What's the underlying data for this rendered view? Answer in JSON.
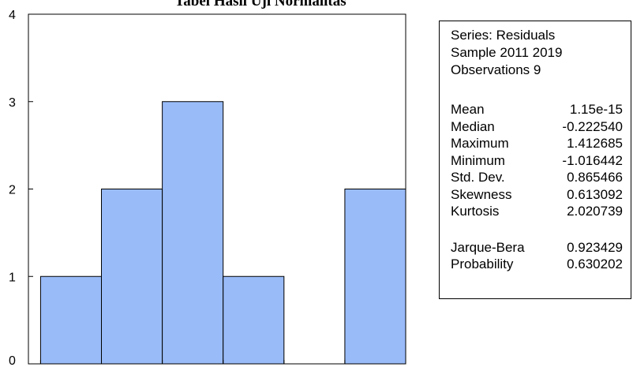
{
  "title": "Tabel Hasil Uji Normalitas",
  "chart_data": {
    "type": "bar",
    "subtype": "histogram",
    "bins": [
      {
        "from": -1.5,
        "to": -1.0,
        "count": 1
      },
      {
        "from": -1.0,
        "to": -0.5,
        "count": 2
      },
      {
        "from": -0.5,
        "to": 0.0,
        "count": 3
      },
      {
        "from": 0.0,
        "to": 0.5,
        "count": 1
      },
      {
        "from": 0.5,
        "to": 1.0,
        "count": 0
      },
      {
        "from": 1.0,
        "to": 1.5,
        "count": 2
      }
    ],
    "xlim": [
      -1.6,
      1.5
    ],
    "ylim": [
      0,
      4
    ],
    "xticks": [
      "-1.5",
      "-1.0",
      "-0.5",
      "0.0",
      "0.5",
      "1.0",
      "1.5"
    ],
    "yticks": [
      "0",
      "1",
      "2",
      "3",
      "4"
    ],
    "bar_color": "#99bbf8",
    "bar_edge_color": "#000000"
  },
  "stats": {
    "header": [
      "Series: Residuals",
      "Sample 2011 2019",
      "Observations 9"
    ],
    "descriptive": [
      {
        "label": "Mean",
        "value": "1.15e-15"
      },
      {
        "label": "Median",
        "value": "-0.222540"
      },
      {
        "label": "Maximum",
        "value": "1.412685"
      },
      {
        "label": "Minimum",
        "value": "-1.016442"
      },
      {
        "label": "Std. Dev.",
        "value": "0.865466"
      },
      {
        "label": "Skewness",
        "value": "0.613092"
      },
      {
        "label": "Kurtosis",
        "value": "2.020739"
      }
    ],
    "tests": [
      {
        "label": "Jarque-Bera",
        "value": "0.923429"
      },
      {
        "label": "Probability",
        "value": "0.630202"
      }
    ]
  }
}
